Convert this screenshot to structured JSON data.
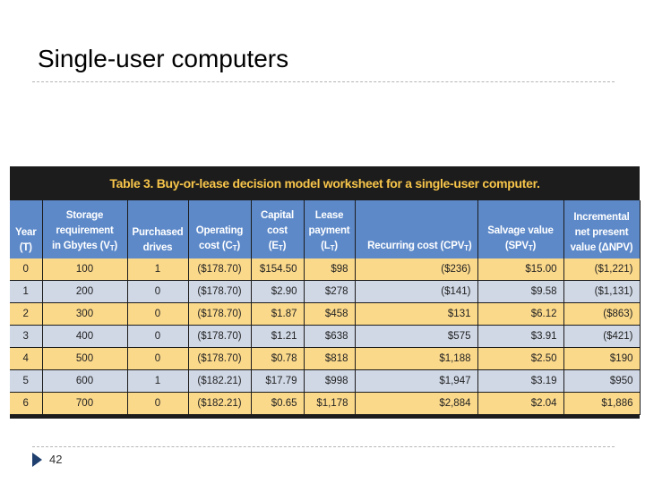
{
  "slide": {
    "title": "Single-user computers",
    "number": "42"
  },
  "table": {
    "caption": "Table 3. Buy-or-lease decision model worksheet for a single-user computer.",
    "headers": {
      "year_line1": "Year",
      "year_line2": "(T)",
      "storage_line1": "Storage",
      "storage_line2": "requirement",
      "storage_line3": "in Gbytes (V",
      "storage_sub": "T",
      "storage_close": ")",
      "drives_line1": "Purchased",
      "drives_line2": "drives",
      "operating_line1": "Operating",
      "operating_line2": "cost (C",
      "operating_sub": "T",
      "operating_close": ")",
      "capital_line1": "Capital",
      "capital_line2": "cost",
      "capital_line3": "(E",
      "capital_sub": "T",
      "capital_close": ")",
      "lease_line1": "Lease",
      "lease_line2": "payment",
      "lease_line3": "(L",
      "lease_sub": "T",
      "lease_close": ")",
      "recurring_line1": "Recurring cost (CPV",
      "recurring_sub": "T",
      "recurring_close": ")",
      "salvage_line1": "Salvage value",
      "salvage_line2": "(SPV",
      "salvage_sub": "T",
      "salvage_close": ")",
      "npv_line1": "Incremental",
      "npv_line2": "net present",
      "npv_line3": "value (ΔNPV)"
    },
    "rows": [
      {
        "year": "0",
        "storage": "100",
        "drives": "1",
        "operating": "($178.70)",
        "capital": "$154.50",
        "lease": "$98",
        "recurring": "($236)",
        "salvage": "$15.00",
        "npv": "($1,221)"
      },
      {
        "year": "1",
        "storage": "200",
        "drives": "0",
        "operating": "($178.70)",
        "capital": "$2.90",
        "lease": "$278",
        "recurring": "($141)",
        "salvage": "$9.58",
        "npv": "($1,131)"
      },
      {
        "year": "2",
        "storage": "300",
        "drives": "0",
        "operating": "($178.70)",
        "capital": "$1.87",
        "lease": "$458",
        "recurring": "$131",
        "salvage": "$6.12",
        "npv": "($863)"
      },
      {
        "year": "3",
        "storage": "400",
        "drives": "0",
        "operating": "($178.70)",
        "capital": "$1.21",
        "lease": "$638",
        "recurring": "$575",
        "salvage": "$3.91",
        "npv": "($421)"
      },
      {
        "year": "4",
        "storage": "500",
        "drives": "0",
        "operating": "($178.70)",
        "capital": "$0.78",
        "lease": "$818",
        "recurring": "$1,188",
        "salvage": "$2.50",
        "npv": "$190"
      },
      {
        "year": "5",
        "storage": "600",
        "drives": "1",
        "operating": "($182.21)",
        "capital": "$17.79",
        "lease": "$998",
        "recurring": "$1,947",
        "salvage": "$3.19",
        "npv": "$950"
      },
      {
        "year": "6",
        "storage": "700",
        "drives": "0",
        "operating": "($182.21)",
        "capital": "$0.65",
        "lease": "$1,178",
        "recurring": "$2,884",
        "salvage": "$2.04",
        "npv": "$1,886"
      }
    ]
  },
  "colors": {
    "caption_background": "#1c1c1c",
    "caption_text": "#f7c54a",
    "header_background": "#5d89c9",
    "row_odd": "#fbd98b",
    "row_even": "#d0d8e6"
  }
}
